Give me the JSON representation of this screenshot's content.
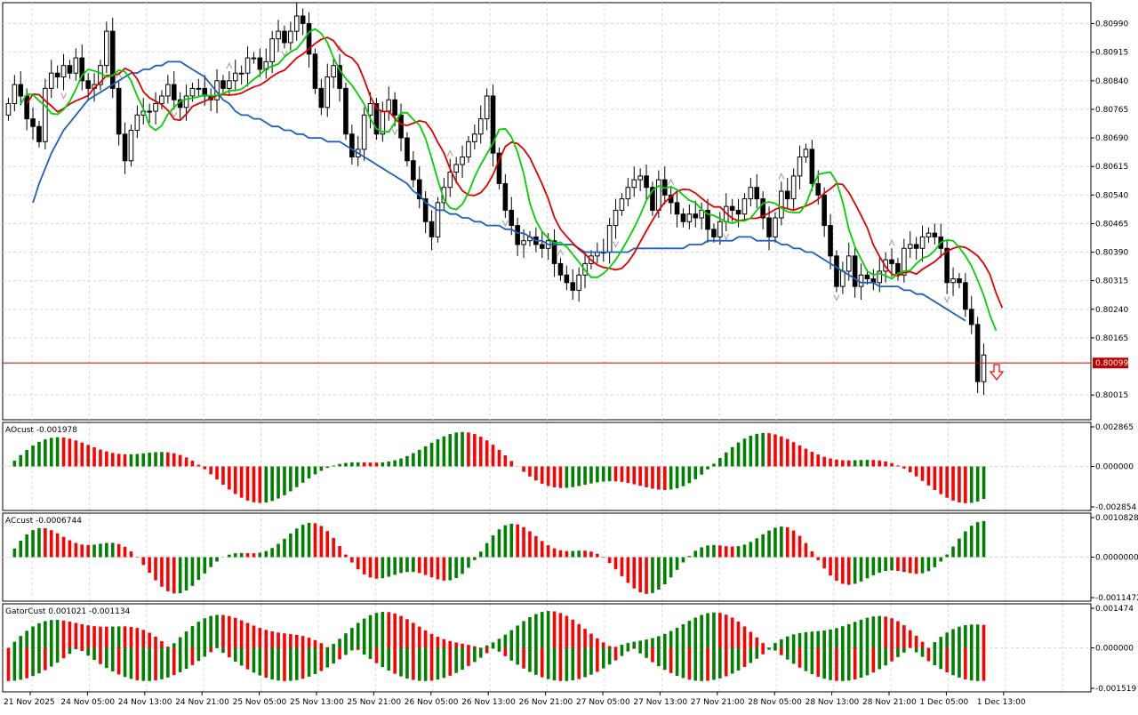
{
  "colors": {
    "up_hist": "#008000",
    "down_hist": "#ff0000",
    "jaw": "#1e5fbf",
    "teeth": "#e00000",
    "lips": "#00d000",
    "price_line": "#c00000",
    "fractal": "#a8a8a8",
    "arrow": "#ff0000",
    "candle_bull": "#ffffff",
    "candle_bear": "#000000"
  },
  "main": {
    "price_axis": [
      "0.80990",
      "0.80915",
      "0.80840",
      "0.80765",
      "0.80690",
      "0.80615",
      "0.80540",
      "0.80465",
      "0.80390",
      "0.80315",
      "0.80240",
      "0.80165",
      "0.80015"
    ],
    "current_price": "0.80099",
    "arrow_icon": "down-arrow-icon"
  },
  "indicators": [
    {
      "label": "AOcust -0.001978",
      "axis": [
        "0.002865",
        "0.000000",
        "-0.002854"
      ]
    },
    {
      "label": "ACcust -0.0006744",
      "axis": [
        "0.0010828",
        "0.0000000",
        "-0.0011472"
      ]
    },
    {
      "label": "GatorCust 0.001021 -0.001134",
      "axis": [
        "0.001474",
        "0.000000",
        "-0.001519"
      ]
    }
  ],
  "time_axis": [
    "21 Nov 2025",
    "24 Nov 05:00",
    "24 Nov 13:00",
    "24 Nov 21:00",
    "25 Nov 05:00",
    "25 Nov 13:00",
    "25 Nov 21:00",
    "26 Nov 05:00",
    "26 Nov 13:00",
    "26 Nov 21:00",
    "27 Nov 05:00",
    "27 Nov 13:00",
    "27 Nov 21:00",
    "28 Nov 05:00",
    "28 Nov 13:00",
    "28 Nov 21:00",
    "1 Dec 05:00",
    "1 Dec 13:00"
  ],
  "chart_data": {
    "type": "candlestick",
    "symbol_scale": {
      "ymin": 0.7995,
      "ymax": 0.81045
    },
    "candles_close": [
      0.8078,
      0.8083,
      0.808,
      0.8074,
      0.8072,
      0.8068,
      0.8082,
      0.8086,
      0.8085,
      0.8088,
      0.8086,
      0.809,
      0.8084,
      0.8082,
      0.8083,
      0.8088,
      0.8097,
      0.8082,
      0.807,
      0.8063,
      0.8071,
      0.8075,
      0.8076,
      0.8076,
      0.8078,
      0.808,
      0.8083,
      0.8079,
      0.8077,
      0.808,
      0.8082,
      0.8082,
      0.808,
      0.8079,
      0.8084,
      0.8082,
      0.8084,
      0.8086,
      0.8086,
      0.809,
      0.809,
      0.8087,
      0.8089,
      0.8095,
      0.8097,
      0.8094,
      0.8097,
      0.8101,
      0.8099,
      0.8091,
      0.8082,
      0.8077,
      0.8085,
      0.8088,
      0.8082,
      0.807,
      0.8064,
      0.8066,
      0.8075,
      0.8078,
      0.807,
      0.8076,
      0.8079,
      0.8075,
      0.8069,
      0.8063,
      0.8058,
      0.8053,
      0.8047,
      0.8043,
      0.8052,
      0.8056,
      0.806,
      0.8062,
      0.8064,
      0.8068,
      0.807,
      0.8074,
      0.808,
      0.8065,
      0.8057,
      0.805,
      0.8046,
      0.8041,
      0.8042,
      0.8043,
      0.8041,
      0.804,
      0.8042,
      0.8036,
      0.8033,
      0.8031,
      0.8029,
      0.8033,
      0.8036,
      0.8038,
      0.8039,
      0.8039,
      0.8046,
      0.805,
      0.8053,
      0.8056,
      0.8058,
      0.8059,
      0.8056,
      0.805,
      0.8058,
      0.8054,
      0.8052,
      0.8049,
      0.8047,
      0.8049,
      0.8048,
      0.805,
      0.8045,
      0.8043,
      0.8047,
      0.8051,
      0.805,
      0.8049,
      0.8053,
      0.8056,
      0.8053,
      0.8048,
      0.8043,
      0.8048,
      0.8055,
      0.8053,
      0.8059,
      0.8064,
      0.8066,
      0.8057,
      0.8054,
      0.8046,
      0.8038,
      0.803,
      0.8034,
      0.8038,
      0.803,
      0.8033,
      0.8032,
      0.8031,
      0.8034,
      0.8037,
      0.8036,
      0.8033,
      0.804,
      0.8041,
      0.804,
      0.8043,
      0.8044,
      0.8043,
      0.804,
      0.8031,
      0.8032,
      0.8031,
      0.8024,
      0.802,
      0.8005,
      0.8012
    ],
    "jaw": [
      0.8052,
      0.8057,
      0.8061,
      0.8065,
      0.8068,
      0.8071,
      0.8073,
      0.8075,
      0.8077,
      0.8079,
      0.808,
      0.8081,
      0.8082,
      0.8083,
      0.8084,
      0.8085,
      0.8086,
      0.8086,
      0.8087,
      0.8087,
      0.8088,
      0.8088,
      0.8089,
      0.8089,
      0.8089,
      0.8088,
      0.8087,
      0.8086,
      0.8085,
      0.8083,
      0.8081,
      0.8079,
      0.8078,
      0.8076,
      0.8075,
      0.8075,
      0.8074,
      0.8074,
      0.8073,
      0.8072,
      0.8072,
      0.8071,
      0.8071,
      0.807,
      0.807,
      0.8069,
      0.8069,
      0.8069,
      0.8068,
      0.8068,
      0.8068,
      0.8067,
      0.8066,
      0.8065,
      0.8064,
      0.8063,
      0.8062,
      0.8061,
      0.806,
      0.8059,
      0.8058,
      0.8057,
      0.8055,
      0.8054,
      0.8052,
      0.8051,
      0.805,
      0.805,
      0.8049,
      0.8049,
      0.8048,
      0.8048,
      0.8047,
      0.8047,
      0.8046,
      0.8046,
      0.8046,
      0.8045,
      0.8045,
      0.8044,
      0.8044,
      0.8043,
      0.8042,
      0.8042,
      0.8041,
      0.8041,
      0.8041,
      0.8041,
      0.8041,
      0.804,
      0.8039,
      0.8039,
      0.8039,
      0.8039,
      0.8039,
      0.8039,
      0.8039,
      0.8039,
      0.804,
      0.804,
      0.804,
      0.804,
      0.804,
      0.804,
      0.804,
      0.804,
      0.804,
      0.8041,
      0.8041,
      0.8041,
      0.8042,
      0.8042,
      0.8042,
      0.8042,
      0.8042,
      0.8043,
      0.8043,
      0.8043,
      0.8042,
      0.8042,
      0.8042,
      0.8042,
      0.8041,
      0.8041,
      0.804,
      0.804,
      0.8039,
      0.8039,
      0.8038,
      0.8037,
      0.8036,
      0.8035,
      0.8034,
      0.8033,
      0.8032,
      0.8031,
      0.8031,
      0.8031,
      0.803,
      0.803,
      0.803,
      0.803,
      0.8029,
      0.8029,
      0.8028,
      0.8028,
      0.8027,
      0.8026,
      0.8025,
      0.8024,
      0.8023,
      0.8022,
      0.8021
    ],
    "time_labels_only": true
  }
}
